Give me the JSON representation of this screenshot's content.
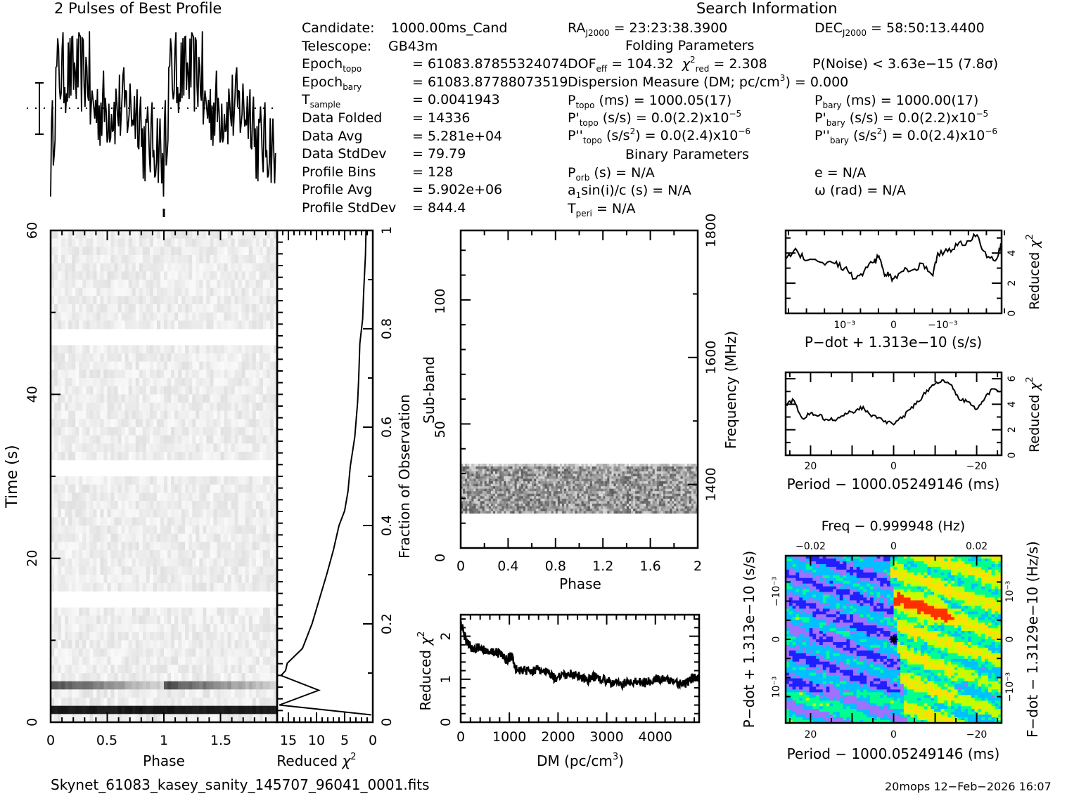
{
  "profile_title": "2 Pulses of Best Profile",
  "info_left": [
    {
      "label": "Candidate:",
      "sub": "",
      "value": "1000.00ms_Cand"
    },
    {
      "label": "Telescope:",
      "sub": "",
      "value": "GB43m"
    },
    {
      "label": "Epoch",
      "sub": "topo",
      "value": "= 61083.87855324074"
    },
    {
      "label": "Epoch",
      "sub": "bary",
      "value": "= 61083.87788073519"
    },
    {
      "label": "T",
      "sub": "sample",
      "value": "=   0.0041943"
    },
    {
      "label": "Data Folded",
      "sub": "",
      "value": "=   14336"
    },
    {
      "label": "Data Avg",
      "sub": "",
      "value": "=   5.281e+04"
    },
    {
      "label": "Data StdDev",
      "sub": "",
      "value": "=   79.79"
    },
    {
      "label": "Profile Bins",
      "sub": "",
      "value": "=   128"
    },
    {
      "label": "Profile Avg",
      "sub": "",
      "value": "=   5.902e+06"
    },
    {
      "label": "Profile StdDev",
      "sub": "",
      "value": "=   844.4"
    }
  ],
  "search_info": {
    "title": "Search Information",
    "ra": "RA",
    "ra_sub": "J2000",
    "ra_value": "= 23:23:38.3900",
    "dec": "DEC",
    "dec_sub": "J2000",
    "dec_value": "= 58:50:13.4400",
    "folding_title": "Folding Parameters",
    "dof": "DOF",
    "dof_sub": "eff",
    "dof_value": "= 104.32",
    "chi_sub": "red",
    "chi_value": "= 2.308",
    "pnoise": "P(Noise) < 3.63e−15   (7.8σ)",
    "dm_line": "Dispersion Measure (DM; pc/cm",
    "dm_value": ") = 0.000",
    "ptopo": "P",
    "ptopo_sub": "topo",
    "ptopo_value": "(ms) =  1000.05(17)",
    "pbary": "P",
    "pbary_sub": "bary",
    "pbary_value": "(ms) =  1000.00(17)",
    "pdtopo_value": "(s/s) = 0.0(2.2)x10",
    "pdtopo_exp": "−5",
    "pdbary_value": "(s/s) = 0.0(2.2)x10",
    "pdbary_exp": "−5",
    "pddtopo_value": ") = 0.0(2.4)x10",
    "pddtopo_exp": "−6",
    "pddbary_value": ") = 0.0(2.4)x10",
    "pddbary_exp": "−6",
    "binary_title": "Binary Parameters",
    "porb": "(s) = N/A",
    "ecc": "e = N/A",
    "asini": "sin(i)/c (s) = N/A",
    "omega": "ω (rad) = N/A",
    "tperi": "= N/A"
  },
  "footer": {
    "filename": "Skynet_61083_kasey_sanity_145707_96041_0001.fits",
    "stamp": "20mops 12−Feb−2026 16:07"
  },
  "colors": {
    "ink": "#000000",
    "bg": "#ffffff"
  },
  "chart_data": [
    {
      "id": "profile",
      "type": "line",
      "title": "2 Pulses of Best Profile",
      "xlabel": "",
      "ylabel": "",
      "xlim": [
        0,
        2
      ],
      "note": "Two copies of the 128-bin folded profile; noisy with dip near phase 0.95 and 1.95; dotted line at mean with error bar"
    },
    {
      "id": "time-phase",
      "type": "heatmap",
      "xlabel": "Phase",
      "ylabel": "Time (s)",
      "xlim": [
        0,
        2
      ],
      "ylim": [
        0,
        60
      ],
      "x_ticks": [
        "0",
        "0.5",
        "1",
        "1.5"
      ],
      "y_ticks": [
        "0",
        "20",
        "40",
        "60"
      ],
      "note": "Greyscale; dark bands near t≈2 s and t≈6.5 s; white gaps near t≈15, 31, 47 s"
    },
    {
      "id": "time-chi2",
      "type": "line",
      "xlabel": "Reduced χ²",
      "ylabel": "Fraction of Observation",
      "xlim": [
        17,
        0
      ],
      "ylim": [
        0,
        1
      ],
      "x_ticks": [
        "15",
        "10",
        "5",
        "0"
      ],
      "y_ticks": [
        "0",
        "0.2",
        "0.4",
        "0.6",
        "0.8",
        "1"
      ],
      "x": [
        0.3,
        16.6,
        9.6,
        16.3,
        15.5,
        15.2,
        12.5,
        10.8,
        9.5,
        8.2,
        7.0,
        6.0,
        5.0,
        4.4,
        4.0,
        3.2,
        2.7,
        2.5,
        2.3,
        1.8,
        1.6,
        1.3,
        1.2
      ],
      "y": [
        0.015,
        0.035,
        0.065,
        0.095,
        0.105,
        0.12,
        0.15,
        0.2,
        0.25,
        0.3,
        0.35,
        0.4,
        0.43,
        0.47,
        0.52,
        0.58,
        0.65,
        0.7,
        0.77,
        0.82,
        0.88,
        0.95,
        1.0
      ]
    },
    {
      "id": "subband-phase",
      "type": "heatmap",
      "xlabel": "Phase",
      "ylabel": "Sub-band",
      "y2label": "Frequency (MHz)",
      "xlim": [
        0,
        2
      ],
      "ylim": [
        0,
        128
      ],
      "y2lim": [
        1300,
        1800
      ],
      "x_ticks": [
        "0",
        "0.4",
        "0.8",
        "1.2",
        "1.6",
        "2"
      ],
      "y_ticks": [
        "0",
        "50",
        "100"
      ],
      "y2_ticks": [
        "1400",
        "1600",
        "1800"
      ],
      "note": "Greyscale noise only in sub-bands ~14–34"
    },
    {
      "id": "dm-chi2",
      "type": "line",
      "xlabel": "DM (pc/cm³)",
      "ylabel": "Reduced χ²",
      "xlim": [
        0,
        4900
      ],
      "ylim": [
        0,
        2.5
      ],
      "x_ticks": [
        "0",
        "1000",
        "2000",
        "3000",
        "4000"
      ],
      "y_ticks": [
        "0",
        "1",
        "2"
      ],
      "x": [
        0,
        100,
        200,
        400,
        600,
        800,
        950,
        1050,
        1150,
        1400,
        1600,
        1800,
        1950,
        2200,
        2400,
        2600,
        2800,
        3000,
        3300,
        3500,
        3800,
        4000,
        4200,
        4400,
        4600,
        4750,
        4900
      ],
      "y": [
        2.3,
        1.95,
        1.75,
        1.72,
        1.66,
        1.6,
        1.45,
        1.55,
        1.2,
        1.2,
        1.22,
        1.15,
        1.0,
        1.12,
        1.1,
        0.98,
        1.08,
        0.95,
        0.88,
        0.95,
        0.92,
        1.02,
        0.98,
        0.95,
        0.88,
        1.02,
        1.05
      ]
    },
    {
      "id": "pdot-chi2",
      "type": "line",
      "xlabel": "P−dot + 1.313e−10 (s/s)",
      "ylabel": "Reduced χ²",
      "xlim": [
        0.0022,
        -0.0022
      ],
      "ylim": [
        0,
        5.5
      ],
      "x_ticks": [
        "10⁻³",
        "0",
        "−10⁻³"
      ],
      "y_ticks": [
        "0",
        "2",
        "4"
      ],
      "x": [
        0.0022,
        0.002,
        0.0018,
        0.0015,
        0.0012,
        0.001,
        0.0008,
        0.0006,
        0.0004,
        0.0003,
        0.0002,
        0.0001,
        0,
        -0.0002,
        -0.0004,
        -0.0006,
        -0.0008,
        -0.0009,
        -0.0011,
        -0.0013,
        -0.0015,
        -0.0017,
        -0.0019,
        -0.0021,
        -0.0022
      ],
      "y": [
        3.6,
        4.3,
        3.5,
        3.4,
        3.3,
        3.0,
        2.3,
        2.8,
        3.4,
        3.8,
        2.7,
        2.5,
        2.3,
        2.8,
        2.9,
        3.3,
        2.5,
        4.0,
        4.1,
        4.5,
        4.8,
        5.2,
        3.7,
        3.6,
        4.6
      ]
    },
    {
      "id": "period-chi2",
      "type": "line",
      "xlabel": "Period − 1000.05249146 (ms)",
      "ylabel": "Reduced χ²",
      "xlim": [
        26,
        -26
      ],
      "ylim": [
        0,
        6.5
      ],
      "x_ticks": [
        "20",
        "0",
        "−20"
      ],
      "y_ticks": [
        "0",
        "2",
        "4",
        "6"
      ],
      "x": [
        26,
        24,
        22,
        20,
        18,
        16,
        14,
        12,
        10,
        8,
        6,
        4,
        2,
        0,
        -2,
        -4,
        -6,
        -8,
        -10,
        -12,
        -14,
        -16,
        -18,
        -20,
        -22,
        -24,
        -26
      ],
      "y": [
        4.0,
        4.3,
        2.9,
        3.3,
        3.1,
        2.8,
        2.7,
        3.1,
        3.4,
        3.8,
        3.3,
        2.9,
        2.7,
        2.4,
        2.9,
        3.6,
        4.2,
        5.1,
        5.6,
        5.9,
        5.5,
        4.3,
        4.2,
        3.6,
        4.5,
        5.2,
        5.0
      ]
    },
    {
      "id": "period-pdot",
      "type": "heatmap",
      "title": "Freq − 0.999948 (Hz)",
      "xlabel": "Period − 1000.05249146 (ms)",
      "ylabel": "P−dot + 1.313e−10 (s/s)",
      "y2label": "F−dot − 1.3129e−10 (Hz/s)",
      "xlim": [
        26,
        -26
      ],
      "x_ticks": [
        "20",
        "0",
        "−20"
      ],
      "x2_ticks": [
        "−0.02",
        "0",
        "0.02"
      ],
      "y_ticks": [
        "−10⁻³",
        "0",
        "10⁻³"
      ],
      "y2_ticks": [
        "10⁻³",
        "0",
        "−10⁻³"
      ],
      "marker": {
        "x": 0,
        "y": 0,
        "symbol": "asterisk"
      },
      "colormap": [
        "#2020ff",
        "#a070ff",
        "#00c0ff",
        "#00ff90",
        "#c0ff00",
        "#ffe000",
        "#ff3000"
      ]
    }
  ]
}
